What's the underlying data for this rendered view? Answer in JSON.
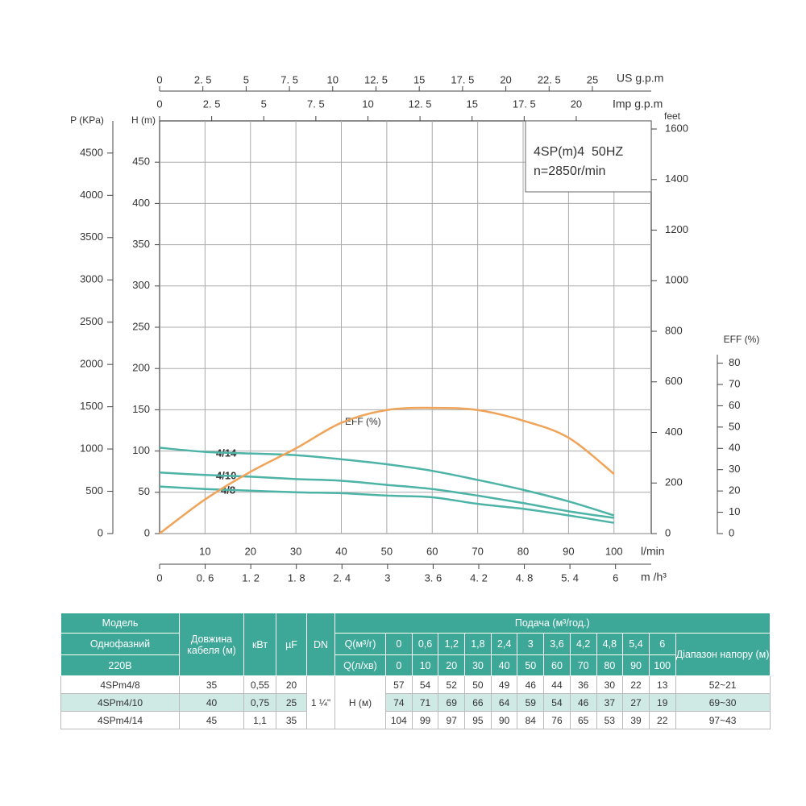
{
  "chart_data": {
    "type": "line",
    "x": [
      0,
      10,
      20,
      30,
      40,
      50,
      60,
      70,
      80,
      90,
      100
    ],
    "xlim": [
      0,
      108.2
    ],
    "xticks": [
      10,
      20,
      30,
      40,
      50,
      60,
      70,
      80,
      90,
      100
    ],
    "xlabel": "l/min",
    "ylim": [
      0,
      500
    ],
    "yticks": [
      0,
      50,
      100,
      150,
      200,
      250,
      300,
      350,
      400,
      450
    ],
    "ylabel": "H (m)",
    "grid": true,
    "series": [
      {
        "name": "4/8",
        "color": "#4cb3a6",
        "values": [
          57,
          54,
          52,
          50,
          49,
          46,
          44,
          36,
          30,
          22,
          13
        ]
      },
      {
        "name": "4/10",
        "color": "#4cb3a6",
        "values": [
          74,
          71,
          69,
          66,
          64,
          59,
          54,
          46,
          37,
          27,
          19
        ]
      },
      {
        "name": "4/14",
        "color": "#4cb3a6",
        "values": [
          104,
          99,
          97,
          95,
          90,
          84,
          76,
          65,
          53,
          39,
          22
        ]
      },
      {
        "name": "EFF (%)",
        "color": "#f0a45a",
        "axis": "eff",
        "values": [
          0,
          16,
          29,
          40,
          52,
          58,
          59,
          58,
          53,
          45,
          28
        ]
      }
    ],
    "p_axis": {
      "label": "P (KPa)",
      "lim": [
        0,
        4880
      ],
      "ticks": [
        0,
        500,
        1000,
        1500,
        2000,
        2500,
        3000,
        3500,
        4000,
        4500
      ]
    },
    "feet_axis": {
      "label": "feet",
      "lim": [
        0,
        1632
      ],
      "ticks": [
        0,
        200,
        400,
        600,
        800,
        1000,
        1200,
        1400,
        1600
      ]
    },
    "eff_axis": {
      "label": "EFF (%)",
      "lim": [
        0,
        84
      ],
      "ticks": [
        0,
        10,
        20,
        30,
        40,
        50,
        60,
        70,
        80
      ]
    },
    "us_gpm_axis": {
      "label": "US g.p.m",
      "lim": [
        0,
        28.4
      ],
      "ticks": [
        0,
        {
          "value": 2.5,
          "label": "2. 5"
        },
        5,
        {
          "value": 7.5,
          "label": "7. 5"
        },
        10,
        {
          "value": 12.5,
          "label": "12. 5"
        },
        15,
        {
          "value": 17.5,
          "label": "17. 5"
        },
        20,
        {
          "value": 22.5,
          "label": "22. 5"
        },
        25
      ]
    },
    "imp_gpm_axis": {
      "label": "Imp g.p.m",
      "lim": [
        0,
        23.6
      ],
      "ticks": [
        0,
        {
          "value": 2.5,
          "label": "2. 5"
        },
        5,
        {
          "value": 7.5,
          "label": "7. 5"
        },
        10,
        {
          "value": 12.5,
          "label": "12. 5"
        },
        15,
        {
          "value": 17.5,
          "label": "17. 5"
        },
        20
      ]
    },
    "m3h_axis": {
      "label": "m /h³",
      "lim": [
        0,
        6.47
      ],
      "ticks": [
        0,
        {
          "value": 0.6,
          "label": "0. 6"
        },
        {
          "value": 1.2,
          "label": "1. 2"
        },
        {
          "value": 1.8,
          "label": "1. 8"
        },
        {
          "value": 2.4,
          "label": "2. 4"
        },
        3,
        {
          "value": 3.6,
          "label": "3. 6"
        },
        {
          "value": 4.2,
          "label": "4. 2"
        },
        {
          "value": 4.8,
          "label": "4. 8"
        },
        {
          "value": 5.4,
          "label": "5. 4"
        },
        6
      ]
    },
    "annotations": [
      "4SP(m)4  50HZ",
      "n=2850r/min"
    ]
  },
  "table": {
    "header": {
      "model": "Модель",
      "phase": "Однофазний",
      "voltage": "220В",
      "cable": "Довжина кабеля (м)",
      "power": "кВт",
      "capacitor": "µF",
      "dn": "DN",
      "flow": "Подача (м³/год.)",
      "q_m3h": "Q(м³/г)",
      "q_lmin": "Q(л/хв)",
      "range": "Діапазон напору (м)"
    },
    "q_m3h_values": [
      0,
      "0,6",
      "1,2",
      "1,8",
      "2,4",
      3,
      "3,6",
      "4,2",
      "4,8",
      "5,4",
      6
    ],
    "dn_value": "1 ¼\"",
    "head_label": "Н (м)",
    "rows": [
      {
        "model": "4SPm4/8",
        "cable": 35,
        "power": "0,55",
        "capacitor": 20,
        "range": "52~21"
      },
      {
        "model": "4SPm4/10",
        "cable": 40,
        "power": "0,75",
        "capacitor": 25,
        "range": "69~30"
      },
      {
        "model": "4SPm4/14",
        "cable": 45,
        "power": "1,1",
        "capacitor": 35,
        "range": "97~43"
      }
    ]
  }
}
